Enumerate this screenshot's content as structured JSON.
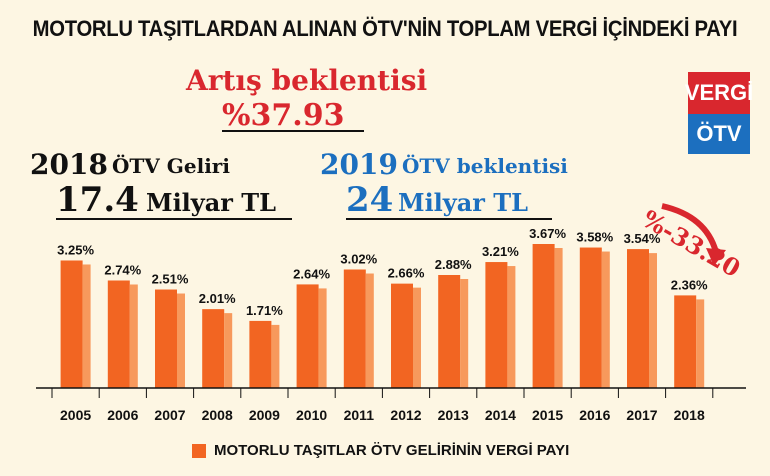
{
  "title": "MOTORLU TAŞITLARDAN ALINAN ÖTV'NİN TOPLAM VERGİ İÇİNDEKİ PAYI",
  "increase": {
    "label": "Artış beklentisi",
    "value": "%37.93"
  },
  "revenue_2018": {
    "year": "2018",
    "label": "ÖTV Geliri",
    "amount": "17.4",
    "unit": "Milyar TL"
  },
  "expectation_2019": {
    "year": "2019",
    "label": "ÖTV beklentisi",
    "amount": "24",
    "unit": "Milyar TL"
  },
  "badge": {
    "top": "VERGİ",
    "bottom": "ÖTV"
  },
  "drop_annotation": "%-33.20",
  "legend": {
    "label": "MOTORLU TAŞITLAR ÖTV GELİRİNİN VERGİ PAYI"
  },
  "colors": {
    "bar": "#f26522",
    "bar_side": "#f7995c",
    "accent_red": "#d9272e",
    "accent_blue": "#1c6fbf"
  },
  "chart_data": {
    "type": "bar",
    "categories": [
      "2005",
      "2006",
      "2007",
      "2008",
      "2009",
      "2010",
      "2011",
      "2012",
      "2013",
      "2014",
      "2015",
      "2016",
      "2017",
      "2018"
    ],
    "values": [
      3.25,
      2.74,
      2.51,
      2.01,
      1.71,
      2.64,
      3.02,
      2.66,
      2.88,
      3.21,
      3.67,
      3.58,
      3.54,
      2.36
    ],
    "value_labels": [
      "3.25%",
      "2.74%",
      "2.51%",
      "2.01%",
      "1.71%",
      "2.64%",
      "3.02%",
      "2.66%",
      "2.88%",
      "3.21%",
      "3.67%",
      "3.58%",
      "3.54%",
      "2.36%"
    ],
    "series_name": "MOTORLU TAŞITLAR ÖTV GELİRİNİN VERGİ PAYI",
    "ylim": [
      0,
      3.67
    ],
    "grid": false,
    "legend_position": "bottom"
  }
}
